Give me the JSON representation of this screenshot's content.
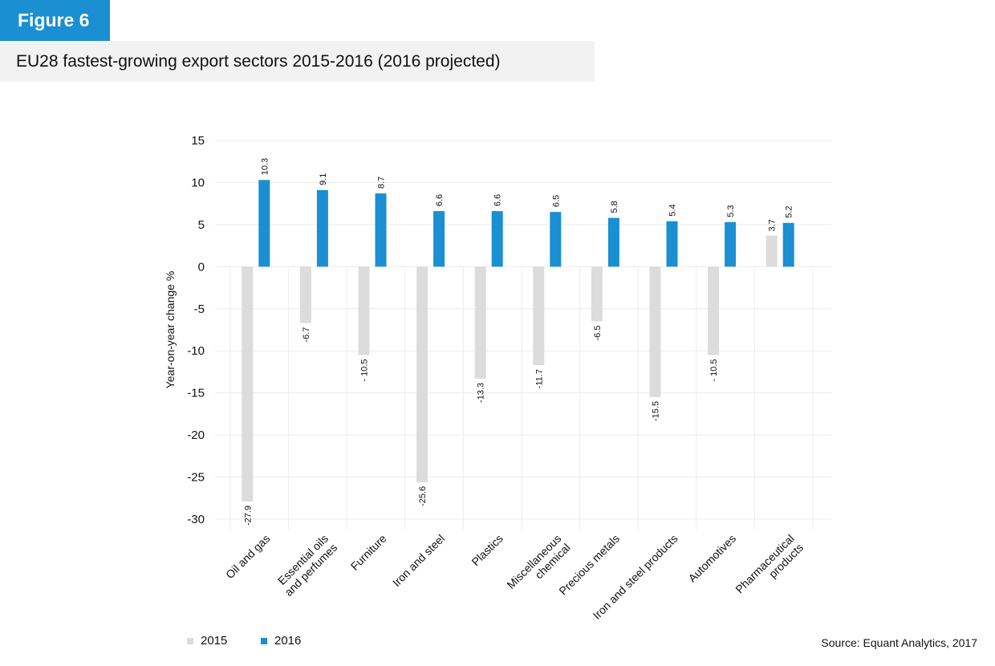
{
  "figure_label": "Figure 6",
  "source": "Source: Equant Analytics, 2017",
  "colors": {
    "accent": "#1a8fd1",
    "s2015": "#dcdcdc",
    "s2016": "#1a8fd1"
  },
  "chart_data": {
    "type": "bar",
    "title": "EU28 fastest-growing export sectors 2015-2016 (2016 projected)",
    "xlabel": "",
    "ylabel": "Year-on-year change %",
    "ylim": [
      -30,
      15
    ],
    "yticks": [
      15,
      10,
      5,
      0,
      -5,
      -10,
      -15,
      -20,
      -25,
      -30
    ],
    "grid": true,
    "legend_position": "bottom-left",
    "categories": [
      [
        "Oil and gas"
      ],
      [
        "Essential oils",
        "and perfumes"
      ],
      [
        "Furniture"
      ],
      [
        "Iron and steel"
      ],
      [
        "Plastics"
      ],
      [
        "Miscellaneous",
        "chemical"
      ],
      [
        "Precious metals"
      ],
      [
        "Iron and steel products"
      ],
      [
        "Automotives"
      ],
      [
        "Pharmaceutical",
        "products"
      ]
    ],
    "series": [
      {
        "name": "2015",
        "color": "#dcdcdc",
        "values": [
          -27.9,
          -6.7,
          -10.5,
          -25.6,
          -13.3,
          -11.7,
          -6.5,
          -15.5,
          -10.5,
          3.7
        ],
        "labels": [
          "-27.9",
          "-6.7",
          "- 10.5",
          "-25.6",
          "-13.3",
          "-11.7",
          "-6.5",
          "-15.5",
          "- 10.5",
          "3.7"
        ]
      },
      {
        "name": "2016",
        "color": "#1a8fd1",
        "values": [
          10.3,
          9.1,
          8.7,
          6.6,
          6.6,
          6.5,
          5.8,
          5.4,
          5.3,
          5.2
        ],
        "labels": [
          "10.3",
          "9.1",
          "8.7",
          "6.6",
          "6.6",
          "6.5",
          "5.8",
          "5.4",
          "5.3",
          "5.2"
        ]
      }
    ]
  }
}
